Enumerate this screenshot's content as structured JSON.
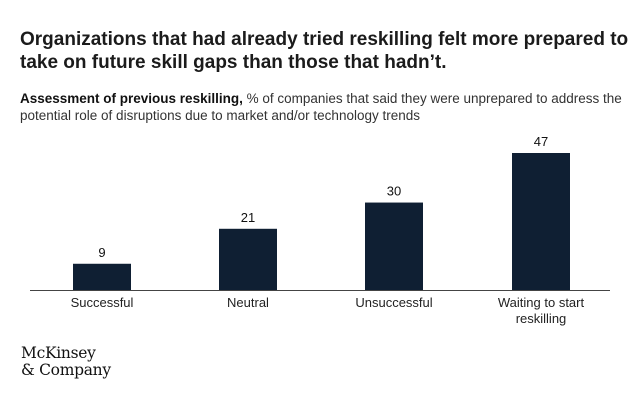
{
  "title": "Organizations that had already tried reskilling felt more prepared to take on future skill gaps than those that hadn’t.",
  "subtitle_bold": "Assessment of previous reskilling,",
  "subtitle_rest": " % of companies that said they were unprepared to address the potential role of disruptions due to market and/or technology trends",
  "logo_line1": "McKinsey",
  "logo_line2": "& Company",
  "colors": {
    "bar": "#0f1f33",
    "axis": "#444444",
    "text": "#111111"
  },
  "chart_data": {
    "type": "bar",
    "categories": [
      [
        "Successful"
      ],
      [
        "Neutral"
      ],
      [
        "Unsuccessful"
      ],
      [
        "Waiting to start",
        "reskilling"
      ]
    ],
    "values": [
      9,
      21,
      30,
      47
    ],
    "data_labels": [
      "9",
      "21",
      "30",
      "47"
    ],
    "ylim": [
      0,
      47
    ],
    "grid": false,
    "legend": "none"
  }
}
